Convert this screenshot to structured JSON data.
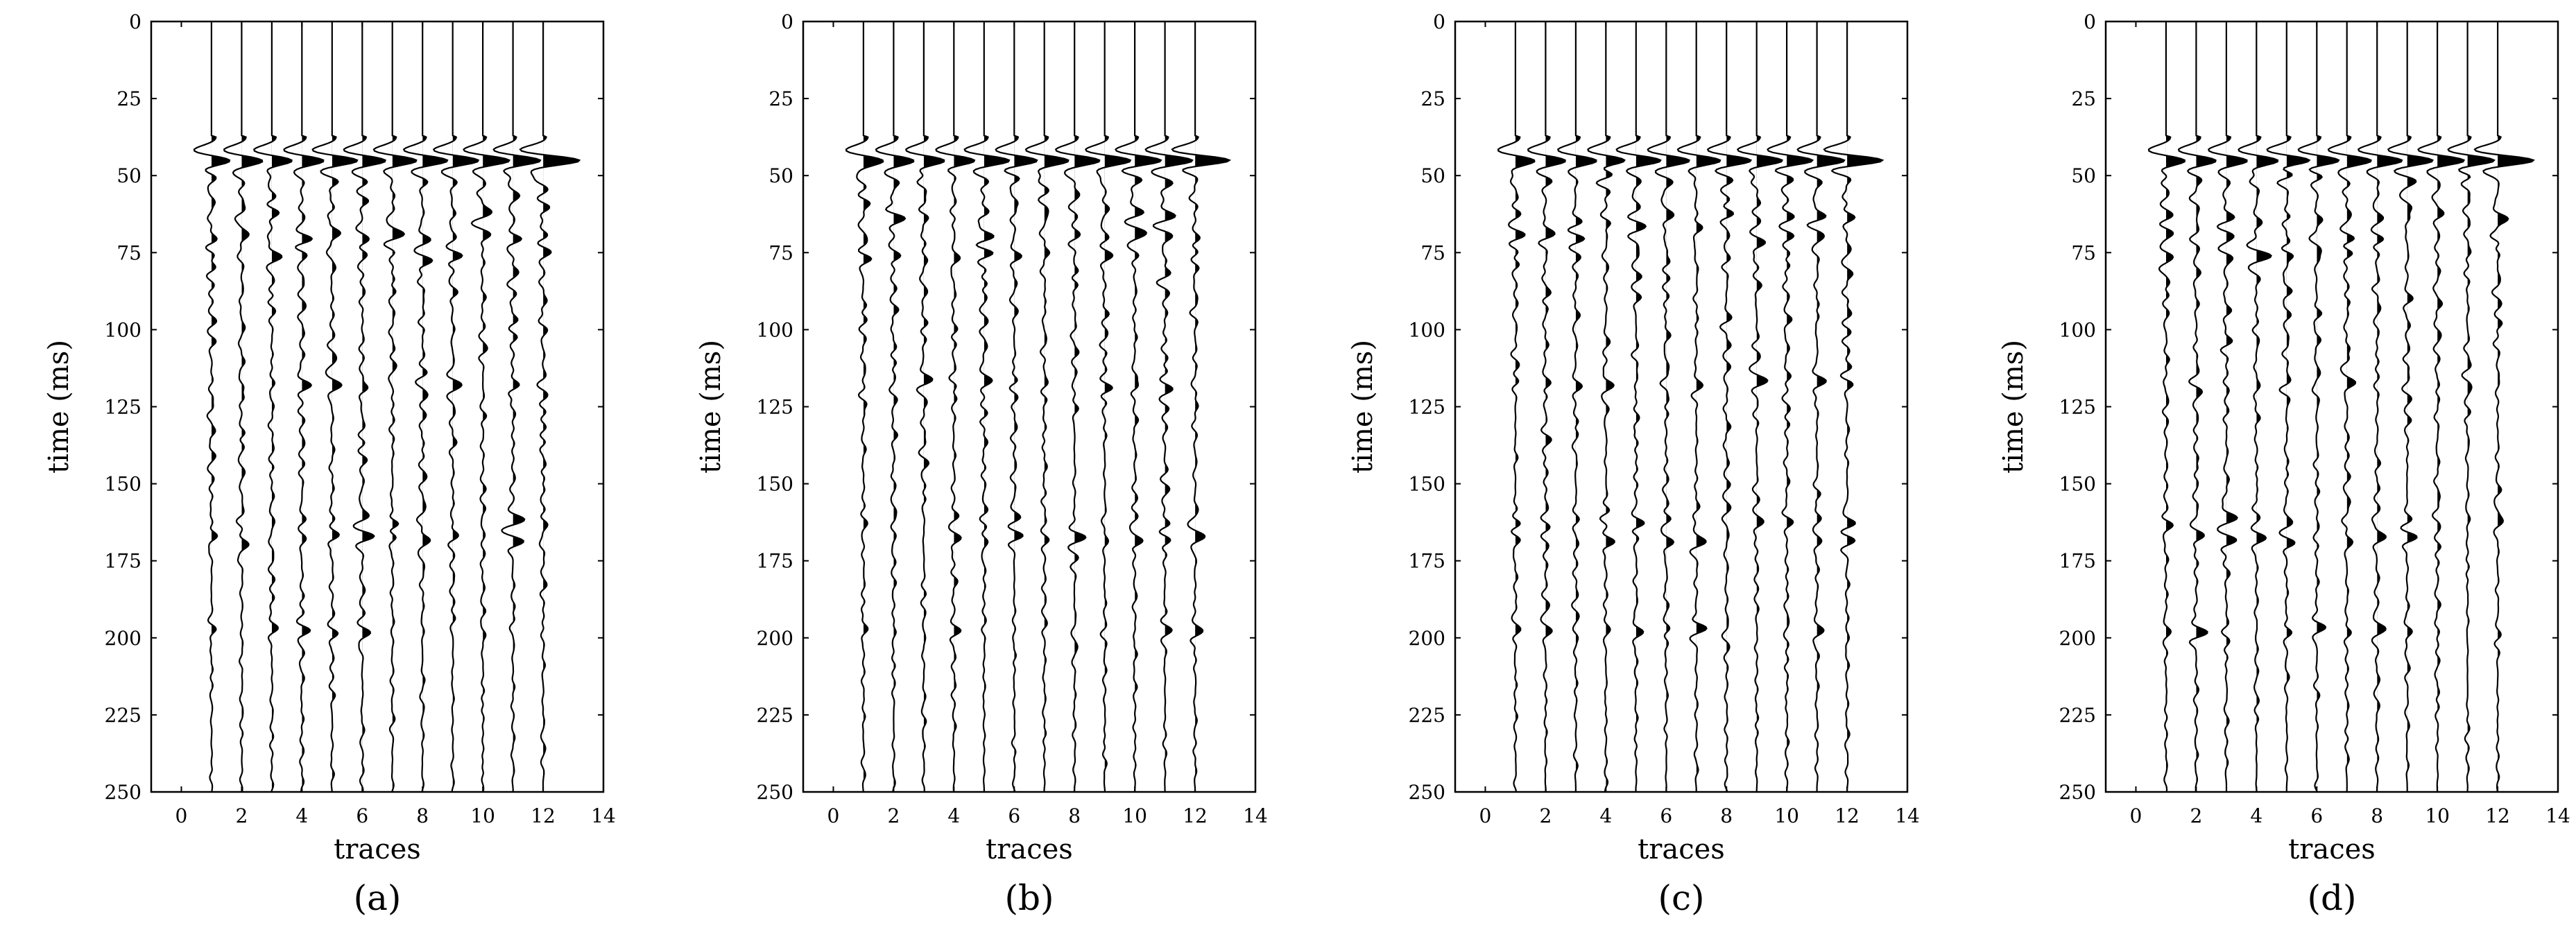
{
  "chart_data": [
    {
      "panel": "(a)",
      "type": "line",
      "subtype": "seismic-wiggle-variable-area",
      "xlabel": "traces",
      "ylabel": "time (ms)",
      "xlim": [
        -1,
        14
      ],
      "ylim": [
        250,
        0
      ],
      "xticks": [
        0,
        2,
        4,
        6,
        8,
        10,
        12,
        14
      ],
      "yticks": [
        0,
        25,
        50,
        75,
        100,
        125,
        150,
        175,
        200,
        225,
        250
      ],
      "traces": [
        1,
        2,
        3,
        4,
        5,
        6,
        7,
        8,
        9,
        10,
        11,
        12
      ],
      "first_arrival_ms": 45,
      "strong_events_ms": [
        45,
        51,
        63,
        70,
        76,
        118,
        162,
        168,
        198
      ],
      "seed": 1
    },
    {
      "panel": "(b)",
      "type": "line",
      "subtype": "seismic-wiggle-variable-area",
      "xlabel": "traces",
      "ylabel": "time (ms)",
      "xlim": [
        -1,
        14
      ],
      "ylim": [
        250,
        0
      ],
      "xticks": [
        0,
        2,
        4,
        6,
        8,
        10,
        12,
        14
      ],
      "yticks": [
        0,
        25,
        50,
        75,
        100,
        125,
        150,
        175,
        200,
        225,
        250
      ],
      "traces": [
        1,
        2,
        3,
        4,
        5,
        6,
        7,
        8,
        9,
        10,
        11,
        12
      ],
      "first_arrival_ms": 45,
      "strong_events_ms": [
        45,
        51,
        63,
        70,
        76,
        118,
        162,
        168,
        198
      ],
      "seed": 2
    },
    {
      "panel": "(c)",
      "type": "line",
      "subtype": "seismic-wiggle-variable-area",
      "xlabel": "traces",
      "ylabel": "time (ms)",
      "xlim": [
        -1,
        14
      ],
      "ylim": [
        250,
        0
      ],
      "xticks": [
        0,
        2,
        4,
        6,
        8,
        10,
        12,
        14
      ],
      "yticks": [
        0,
        25,
        50,
        75,
        100,
        125,
        150,
        175,
        200,
        225,
        250
      ],
      "traces": [
        1,
        2,
        3,
        4,
        5,
        6,
        7,
        8,
        9,
        10,
        11,
        12
      ],
      "first_arrival_ms": 45,
      "strong_events_ms": [
        45,
        51,
        63,
        70,
        76,
        118,
        162,
        168,
        198
      ],
      "seed": 3
    },
    {
      "panel": "(d)",
      "type": "line",
      "subtype": "seismic-wiggle-variable-area",
      "xlabel": "traces",
      "ylabel": "time (ms)",
      "xlim": [
        -1,
        14
      ],
      "ylim": [
        250,
        0
      ],
      "xticks": [
        0,
        2,
        4,
        6,
        8,
        10,
        12,
        14
      ],
      "yticks": [
        0,
        25,
        50,
        75,
        100,
        125,
        150,
        175,
        200,
        225,
        250
      ],
      "traces": [
        1,
        2,
        3,
        4,
        5,
        6,
        7,
        8,
        9,
        10,
        11,
        12
      ],
      "first_arrival_ms": 45,
      "strong_events_ms": [
        45,
        51,
        63,
        70,
        76,
        118,
        162,
        168,
        198
      ],
      "seed": 4
    }
  ]
}
